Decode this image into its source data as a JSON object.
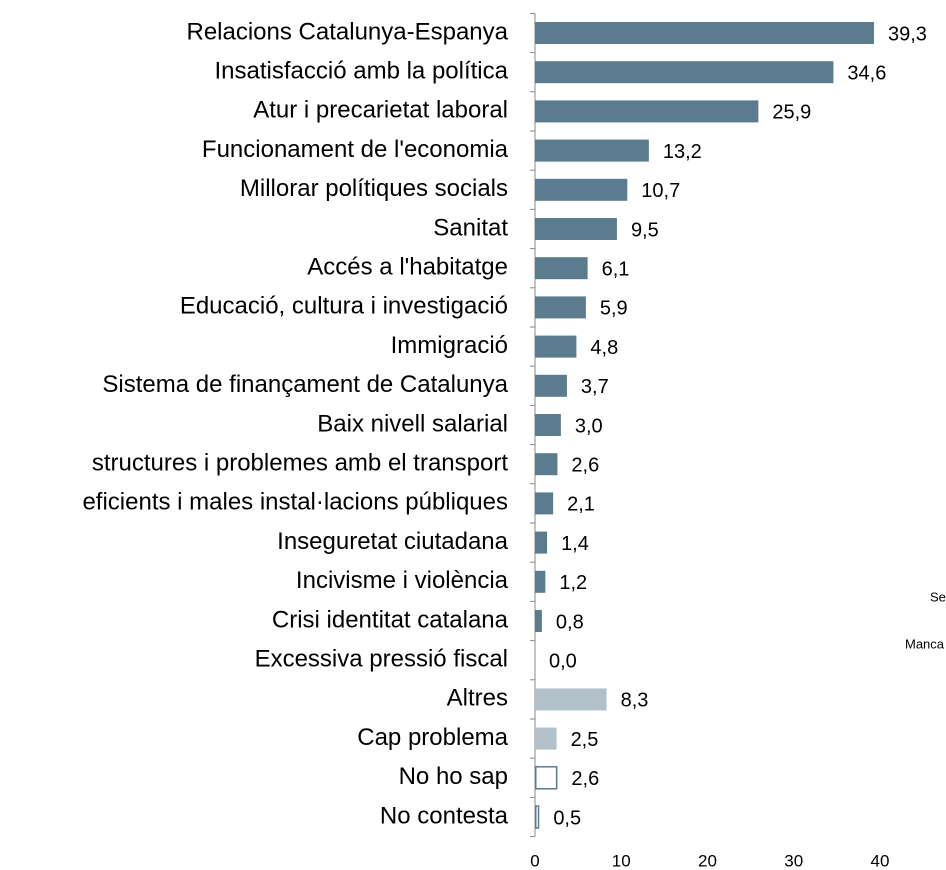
{
  "chart_data": {
    "type": "hbar",
    "categories": [
      "Relacions Catalunya-Espanya",
      "Insatisfacció amb la política",
      "Atur i precarietat laboral",
      "Funcionament de l'economia",
      "Millorar polítiques socials",
      "Sanitat",
      "Accés a l'habitatge",
      "Educació, cultura i investigació",
      "Immigració",
      "Sistema de finançament de Catalunya",
      "Baix nivell salarial",
      "structures i problemes amb el transport",
      "eficients i males instal·lacions públiques",
      "Inseguretat ciutadana",
      "Incivisme i violència",
      "Crisi identitat catalana",
      "Excessiva pressió fiscal",
      "Altres",
      "Cap problema",
      "No ho sap",
      "No contesta"
    ],
    "values": [
      39.3,
      34.6,
      25.9,
      13.2,
      10.7,
      9.5,
      6.1,
      5.9,
      4.8,
      3.7,
      3.0,
      2.6,
      2.1,
      1.4,
      1.2,
      0.8,
      0.0,
      8.3,
      2.5,
      2.6,
      0.5
    ],
    "value_labels": [
      "39,3",
      "34,6",
      "25,9",
      "13,2",
      "10,7",
      "9,5",
      "6,1",
      "5,9",
      "4,8",
      "3,7",
      "3,0",
      "2,6",
      "2,1",
      "1,4",
      "1,2",
      "0,8",
      "0,0",
      "8,3",
      "2,5",
      "2,6",
      "0,5"
    ],
    "colors": [
      "#5b7b8e",
      "#5b7b8e",
      "#5b7b8e",
      "#5b7b8e",
      "#5b7b8e",
      "#5b7b8e",
      "#5b7b8e",
      "#5b7b8e",
      "#5b7b8e",
      "#5b7b8e",
      "#5b7b8e",
      "#5b7b8e",
      "#5b7b8e",
      "#5b7b8e",
      "#5b7b8e",
      "#5b7b8e",
      "#5b7b8e",
      "#b2c0c9",
      "#b2c0c9",
      "#ffffff",
      "#ffffff"
    ],
    "outline": "#5b7b8e",
    "xlim": [
      0,
      40
    ],
    "xticks": [
      0,
      10,
      20,
      30,
      40
    ],
    "annotations": [
      "Se",
      "Manca"
    ]
  }
}
